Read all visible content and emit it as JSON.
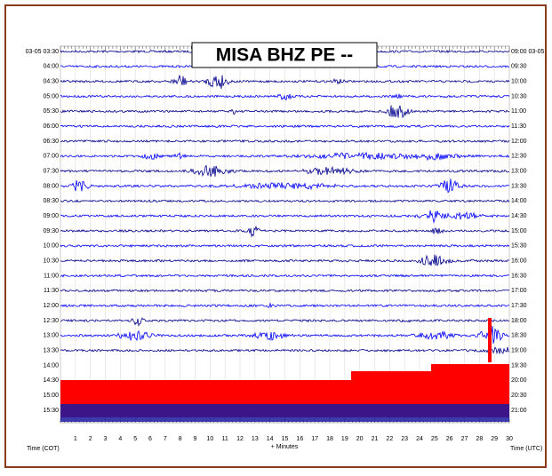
{
  "title": "MISA BHZ PE --",
  "left_labels": [
    "03-05 03:30",
    "04:00",
    "04:30",
    "05:00",
    "05:30",
    "06:00",
    "06:30",
    "07:00",
    "07:30",
    "08:00",
    "08:30",
    "09:00",
    "09:30",
    "10:00",
    "10:30",
    "11:00",
    "11:30",
    "12:00",
    "12:30",
    "13:00",
    "13:30",
    "14:00",
    "14:30",
    "15:00",
    "15:30"
  ],
  "right_labels": [
    "09:00 03-05",
    "09:30",
    "10:00",
    "10:30",
    "11:00",
    "11:30",
    "12:00",
    "12:30",
    "13:00",
    "13:30",
    "14:00",
    "14:30",
    "15:00",
    "15:30",
    "16:00",
    "16:30",
    "17:00",
    "17:30",
    "18:00",
    "18:30",
    "19:00",
    "19:30",
    "20:00",
    "20:30",
    "21:00"
  ],
  "x_labels": [
    "1",
    "2",
    "3",
    "4",
    "5",
    "6",
    "7",
    "8",
    "9",
    "10",
    "11",
    "12",
    "13",
    "14",
    "15",
    "16",
    "17",
    "18",
    "19",
    "20",
    "21",
    "22",
    "23",
    "24",
    "25",
    "26",
    "27",
    "28",
    "29",
    "30"
  ],
  "left_axis_label": "Time (COT)",
  "x_axis_label": "+ Minutes",
  "right_axis_label": "Time (UTC)"
}
